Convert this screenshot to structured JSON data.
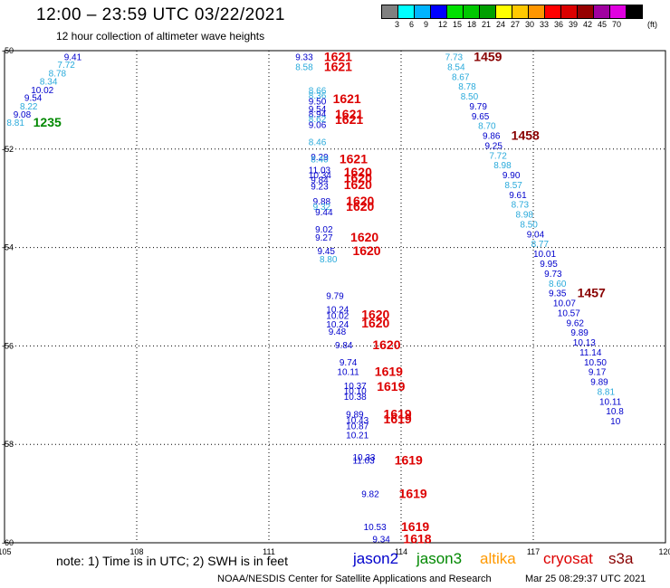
{
  "header": {
    "title": "12:00 – 23:59 UTC 03/22/2021",
    "subtitle": "12 hour collection of altimeter wave heights",
    "legend_unit": "(ft)",
    "legend_labels": [
      "3",
      "6",
      "9",
      "12",
      "15",
      "18",
      "21",
      "24",
      "27",
      "30",
      "33",
      "36",
      "39",
      "42",
      "45",
      "70"
    ],
    "legend_colors": [
      "#808080",
      "#00ffff",
      "#00b4ff",
      "#0000ff",
      "#00e100",
      "#00c800",
      "#00a000",
      "#ffff00",
      "#ffc800",
      "#ff9600",
      "#ff0000",
      "#dc0000",
      "#960000",
      "#a000a0",
      "#e100e1",
      "#000000"
    ]
  },
  "map": {
    "lon_ticks": [
      "105",
      "108",
      "111",
      "114",
      "117",
      "120"
    ],
    "lat_ticks": [
      "-50",
      "-52",
      "-54",
      "-56",
      "-58",
      "-60"
    ],
    "lon_range": [
      105,
      120
    ],
    "lat_range": [
      -50,
      -60
    ],
    "observations": [
      {
        "label": "9.41",
        "lon": 106.35,
        "lat": -50.12,
        "color": "#0000cc"
      },
      {
        "label": "7.72",
        "lon": 106.2,
        "lat": -50.28,
        "color": "#29aadb"
      },
      {
        "label": "8.78",
        "lon": 106.0,
        "lat": -50.45,
        "color": "#29aadb"
      },
      {
        "label": "8.34",
        "lon": 105.8,
        "lat": -50.62,
        "color": "#29aadb"
      },
      {
        "label": "10.02",
        "lon": 105.6,
        "lat": -50.79,
        "color": "#0000cc"
      },
      {
        "label": "9.54",
        "lon": 105.45,
        "lat": -50.95,
        "color": "#0000cc"
      },
      {
        "label": "8.22",
        "lon": 105.35,
        "lat": -51.12,
        "color": "#29aadb"
      },
      {
        "label": "9.08",
        "lon": 105.2,
        "lat": -51.29,
        "color": "#0000cc"
      },
      {
        "label": "8.81",
        "lon": 105.05,
        "lat": -51.45,
        "color": "#29aadb"
      },
      {
        "label": "1235",
        "lon": 105.65,
        "lat": -51.45,
        "color": "#008800",
        "bold": true
      },
      {
        "label": "9.33",
        "lon": 111.6,
        "lat": -50.12,
        "color": "#0000cc"
      },
      {
        "label": "8.58",
        "lon": 111.6,
        "lat": -50.32,
        "color": "#29aadb"
      },
      {
        "label": "1621",
        "lon": 112.25,
        "lat": -50.12,
        "color": "#dd0000",
        "bold": true
      },
      {
        "label": "1621",
        "lon": 112.25,
        "lat": -50.32,
        "color": "#dd0000",
        "bold": true
      },
      {
        "label": "8.66",
        "lon": 111.9,
        "lat": -50.8,
        "color": "#29aadb"
      },
      {
        "label": "8.36",
        "lon": 111.9,
        "lat": -50.9,
        "color": "#29aadb"
      },
      {
        "label": "9.50",
        "lon": 111.9,
        "lat": -51.02,
        "color": "#0000cc"
      },
      {
        "label": "9.54",
        "lon": 111.9,
        "lat": -51.18,
        "color": "#0000cc"
      },
      {
        "label": "8.94",
        "lon": 111.9,
        "lat": -51.28,
        "color": "#0000cc"
      },
      {
        "label": "8.62",
        "lon": 111.9,
        "lat": -51.38,
        "color": "#29aadb"
      },
      {
        "label": "9.06",
        "lon": 111.9,
        "lat": -51.5,
        "color": "#0000cc"
      },
      {
        "label": "1621",
        "lon": 112.45,
        "lat": -50.97,
        "color": "#dd0000",
        "bold": true
      },
      {
        "label": "1621",
        "lon": 112.5,
        "lat": -51.29,
        "color": "#dd0000",
        "bold": true
      },
      {
        "label": "1621",
        "lon": 112.5,
        "lat": -51.4,
        "color": "#dd0000",
        "bold": true
      },
      {
        "label": "8.46",
        "lon": 111.9,
        "lat": -51.85,
        "color": "#29aadb"
      },
      {
        "label": "9.29",
        "lon": 111.95,
        "lat": -52.15,
        "color": "#0000cc"
      },
      {
        "label": "8.40",
        "lon": 111.95,
        "lat": -52.2,
        "color": "#29aadb"
      },
      {
        "label": "11.03",
        "lon": 111.9,
        "lat": -52.42,
        "color": "#0000cc"
      },
      {
        "label": "10.34",
        "lon": 111.9,
        "lat": -52.52,
        "color": "#0000cc"
      },
      {
        "label": "9.84",
        "lon": 111.95,
        "lat": -52.62,
        "color": "#0000cc"
      },
      {
        "label": "9.23",
        "lon": 111.95,
        "lat": -52.75,
        "color": "#0000cc"
      },
      {
        "label": "1621",
        "lon": 112.6,
        "lat": -52.2,
        "color": "#dd0000",
        "bold": true
      },
      {
        "label": "1620",
        "lon": 112.7,
        "lat": -52.46,
        "color": "#dd0000",
        "bold": true
      },
      {
        "label": "1620",
        "lon": 112.7,
        "lat": -52.58,
        "color": "#dd0000",
        "bold": true
      },
      {
        "label": "1620",
        "lon": 112.7,
        "lat": -52.72,
        "color": "#dd0000",
        "bold": true
      },
      {
        "label": "9.88",
        "lon": 112.0,
        "lat": -53.05,
        "color": "#0000cc"
      },
      {
        "label": "9.32",
        "lon": 112.0,
        "lat": -53.16,
        "color": "#29aadb"
      },
      {
        "label": "9.44",
        "lon": 112.05,
        "lat": -53.27,
        "color": "#0000cc"
      },
      {
        "label": "1620",
        "lon": 112.75,
        "lat": -53.05,
        "color": "#dd0000",
        "bold": true
      },
      {
        "label": "1620",
        "lon": 112.75,
        "lat": -53.16,
        "color": "#dd0000",
        "bold": true
      },
      {
        "label": "9.02",
        "lon": 112.05,
        "lat": -53.62,
        "color": "#0000cc"
      },
      {
        "label": "9.27",
        "lon": 112.05,
        "lat": -53.79,
        "color": "#0000cc"
      },
      {
        "label": "1620",
        "lon": 112.85,
        "lat": -53.79,
        "color": "#dd0000",
        "bold": true
      },
      {
        "label": "9.45",
        "lon": 112.1,
        "lat": -54.06,
        "color": "#0000cc"
      },
      {
        "label": "8.80",
        "lon": 112.15,
        "lat": -54.23,
        "color": "#29aadb"
      },
      {
        "label": "1620",
        "lon": 112.9,
        "lat": -54.06,
        "color": "#dd0000",
        "bold": true
      },
      {
        "label": "9.79",
        "lon": 112.3,
        "lat": -54.97,
        "color": "#0000cc"
      },
      {
        "label": "10.24",
        "lon": 112.3,
        "lat": -55.25,
        "color": "#0000cc"
      },
      {
        "label": "10.02",
        "lon": 112.3,
        "lat": -55.38,
        "color": "#0000cc"
      },
      {
        "label": "10.24",
        "lon": 112.3,
        "lat": -55.55,
        "color": "#0000cc"
      },
      {
        "label": "9.48",
        "lon": 112.35,
        "lat": -55.7,
        "color": "#0000cc"
      },
      {
        "label": "1620",
        "lon": 113.1,
        "lat": -55.36,
        "color": "#dd0000",
        "bold": true
      },
      {
        "label": "1620",
        "lon": 113.1,
        "lat": -55.53,
        "color": "#dd0000",
        "bold": true
      },
      {
        "label": "9.84",
        "lon": 112.5,
        "lat": -55.97,
        "color": "#0000cc"
      },
      {
        "label": "1620",
        "lon": 113.35,
        "lat": -55.97,
        "color": "#dd0000",
        "bold": true
      },
      {
        "label": "9.74",
        "lon": 112.6,
        "lat": -56.32,
        "color": "#0000cc"
      },
      {
        "label": "10.11",
        "lon": 112.55,
        "lat": -56.52,
        "color": "#0000cc"
      },
      {
        "label": "1619",
        "lon": 113.4,
        "lat": -56.52,
        "color": "#dd0000",
        "bold": true
      },
      {
        "label": "10.37",
        "lon": 112.7,
        "lat": -56.8,
        "color": "#0000cc"
      },
      {
        "label": "10.10",
        "lon": 112.7,
        "lat": -56.9,
        "color": "#0000cc"
      },
      {
        "label": "10.38",
        "lon": 112.7,
        "lat": -57.02,
        "color": "#0000cc"
      },
      {
        "label": "1619",
        "lon": 113.45,
        "lat": -56.82,
        "color": "#dd0000",
        "bold": true
      },
      {
        "label": "9.89",
        "lon": 112.75,
        "lat": -57.38,
        "color": "#0000cc"
      },
      {
        "label": "10.43",
        "lon": 112.75,
        "lat": -57.5,
        "color": "#0000cc"
      },
      {
        "label": "10.87",
        "lon": 112.75,
        "lat": -57.62,
        "color": "#0000cc"
      },
      {
        "label": "10.21",
        "lon": 112.75,
        "lat": -57.8,
        "color": "#0000cc"
      },
      {
        "label": "1619",
        "lon": 113.6,
        "lat": -57.38,
        "color": "#dd0000",
        "bold": true
      },
      {
        "label": "1619",
        "lon": 113.6,
        "lat": -57.48,
        "color": "#dd0000",
        "bold": true
      },
      {
        "label": "10.33",
        "lon": 112.9,
        "lat": -58.25,
        "color": "#0000cc"
      },
      {
        "label": "11.03",
        "lon": 112.9,
        "lat": -58.32,
        "color": "#0000cc"
      },
      {
        "label": "1619",
        "lon": 113.85,
        "lat": -58.32,
        "color": "#dd0000",
        "bold": true
      },
      {
        "label": "9.82",
        "lon": 113.1,
        "lat": -59.0,
        "color": "#0000cc"
      },
      {
        "label": "1619",
        "lon": 113.95,
        "lat": -59.0,
        "color": "#dd0000",
        "bold": true
      },
      {
        "label": "10.53",
        "lon": 113.15,
        "lat": -59.67,
        "color": "#0000cc"
      },
      {
        "label": "1619",
        "lon": 114.0,
        "lat": -59.67,
        "color": "#dd0000",
        "bold": true
      },
      {
        "label": "9.34",
        "lon": 113.35,
        "lat": -59.92,
        "color": "#0000cc"
      },
      {
        "label": "1618",
        "lon": 114.05,
        "lat": -59.92,
        "color": "#dd0000",
        "bold": true
      },
      {
        "label": "7.73",
        "lon": 115.0,
        "lat": -50.12,
        "color": "#29aadb"
      },
      {
        "label": "1459",
        "lon": 115.65,
        "lat": -50.12,
        "color": "#880000",
        "bold": true
      },
      {
        "label": "8.54",
        "lon": 115.05,
        "lat": -50.32,
        "color": "#29aadb"
      },
      {
        "label": "8.67",
        "lon": 115.15,
        "lat": -50.52,
        "color": "#29aadb"
      },
      {
        "label": "8.78",
        "lon": 115.3,
        "lat": -50.72,
        "color": "#29aadb"
      },
      {
        "label": "8.50",
        "lon": 115.35,
        "lat": -50.92,
        "color": "#29aadb"
      },
      {
        "label": "9.79",
        "lon": 115.55,
        "lat": -51.12,
        "color": "#0000cc"
      },
      {
        "label": "9.65",
        "lon": 115.6,
        "lat": -51.32,
        "color": "#0000cc"
      },
      {
        "label": "8.70",
        "lon": 115.75,
        "lat": -51.52,
        "color": "#29aadb"
      },
      {
        "label": "9.86",
        "lon": 115.85,
        "lat": -51.72,
        "color": "#0000cc"
      },
      {
        "label": "1458",
        "lon": 116.5,
        "lat": -51.72,
        "color": "#880000",
        "bold": true
      },
      {
        "label": "9.25",
        "lon": 115.9,
        "lat": -51.92,
        "color": "#0000cc"
      },
      {
        "label": "7.72",
        "lon": 116.0,
        "lat": -52.12,
        "color": "#29aadb"
      },
      {
        "label": "8.98",
        "lon": 116.1,
        "lat": -52.32,
        "color": "#29aadb"
      },
      {
        "label": "9.90",
        "lon": 116.3,
        "lat": -52.52,
        "color": "#0000cc"
      },
      {
        "label": "8.57",
        "lon": 116.35,
        "lat": -52.72,
        "color": "#29aadb"
      },
      {
        "label": "9.61",
        "lon": 116.45,
        "lat": -52.92,
        "color": "#0000cc"
      },
      {
        "label": "8.73",
        "lon": 116.5,
        "lat": -53.12,
        "color": "#29aadb"
      },
      {
        "label": "8.98",
        "lon": 116.6,
        "lat": -53.32,
        "color": "#29aadb"
      },
      {
        "label": "8.50",
        "lon": 116.7,
        "lat": -53.52,
        "color": "#29aadb"
      },
      {
        "label": "9.04",
        "lon": 116.85,
        "lat": -53.72,
        "color": "#0000cc"
      },
      {
        "label": "8.77",
        "lon": 116.95,
        "lat": -53.92,
        "color": "#29aadb"
      },
      {
        "label": "10.01",
        "lon": 117.0,
        "lat": -54.12,
        "color": "#0000cc"
      },
      {
        "label": "9.95",
        "lon": 117.15,
        "lat": -54.32,
        "color": "#0000cc"
      },
      {
        "label": "9.73",
        "lon": 117.25,
        "lat": -54.52,
        "color": "#0000cc"
      },
      {
        "label": "8.60",
        "lon": 117.35,
        "lat": -54.72,
        "color": "#29aadb"
      },
      {
        "label": "9.35",
        "lon": 117.35,
        "lat": -54.92,
        "color": "#0000cc"
      },
      {
        "label": "1457",
        "lon": 118.0,
        "lat": -54.92,
        "color": "#880000",
        "bold": true
      },
      {
        "label": "10.07",
        "lon": 117.45,
        "lat": -55.12,
        "color": "#0000cc"
      },
      {
        "label": "10.57",
        "lon": 117.55,
        "lat": -55.32,
        "color": "#0000cc"
      },
      {
        "label": "9.62",
        "lon": 117.75,
        "lat": -55.52,
        "color": "#0000cc"
      },
      {
        "label": "9.89",
        "lon": 117.85,
        "lat": -55.72,
        "color": "#0000cc"
      },
      {
        "label": "10.13",
        "lon": 117.9,
        "lat": -55.92,
        "color": "#0000cc"
      },
      {
        "label": "11.14",
        "lon": 118.05,
        "lat": -56.12,
        "color": "#0000cc"
      },
      {
        "label": "10.50",
        "lon": 118.15,
        "lat": -56.32,
        "color": "#0000cc"
      },
      {
        "label": "9.17",
        "lon": 118.25,
        "lat": -56.52,
        "color": "#0000cc"
      },
      {
        "label": "9.89",
        "lon": 118.3,
        "lat": -56.72,
        "color": "#0000cc"
      },
      {
        "label": "8.81",
        "lon": 118.45,
        "lat": -56.92,
        "color": "#29aadb"
      },
      {
        "label": "10.11",
        "lon": 118.5,
        "lat": -57.12,
        "color": "#0000cc"
      },
      {
        "label": "10.8",
        "lon": 118.65,
        "lat": -57.32,
        "color": "#0000cc"
      },
      {
        "label": "10",
        "lon": 118.75,
        "lat": -57.52,
        "color": "#0000cc"
      }
    ]
  },
  "footer": {
    "note": "note:  1) Time is in UTC;  2) SWH is in feet",
    "satellites": [
      {
        "name": "jason2",
        "color": "#0000cc"
      },
      {
        "name": "jason3",
        "color": "#008800"
      },
      {
        "name": "altika",
        "color": "#ff9900"
      },
      {
        "name": "cryosat",
        "color": "#dd0000"
      },
      {
        "name": "s3a",
        "color": "#880000"
      }
    ],
    "credit": "NOAA/NESDIS Center for Satellite Applications and Research",
    "timestamp": "Mar 25 08:29:37 UTC 2021"
  }
}
